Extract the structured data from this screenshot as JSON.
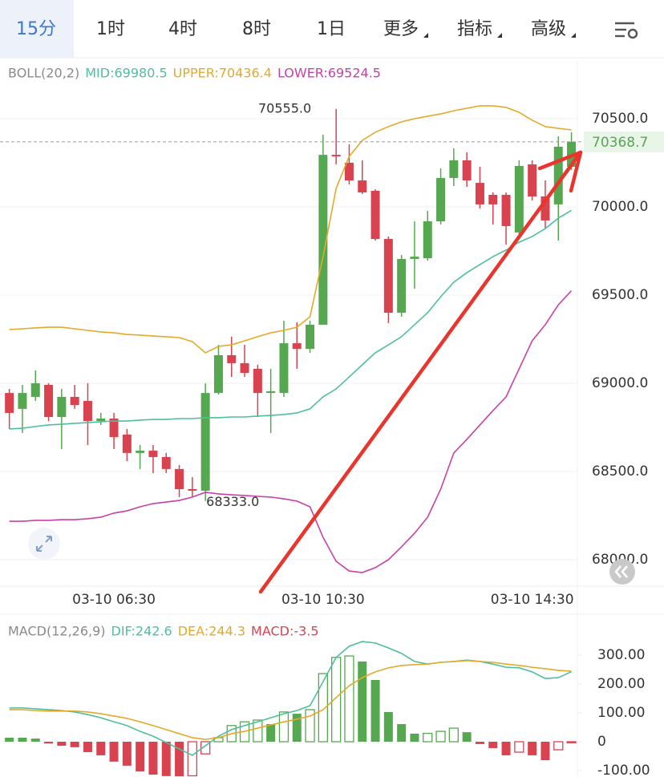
{
  "tabs": [
    "15分",
    "1时",
    "4时",
    "8时",
    "1日",
    "更多",
    "指标",
    "高级"
  ],
  "active_tab": 0,
  "chart_data": [
    {
      "type": "candlestick",
      "title": "BOLL(20,2)",
      "categories": [
        null,
        null,
        null,
        null,
        null,
        null,
        null,
        null,
        "03-10 06:30",
        null,
        null,
        null,
        null,
        null,
        null,
        null,
        null,
        null,
        null,
        null,
        null,
        null,
        null,
        null,
        "03-10 10:30",
        null,
        null,
        null,
        null,
        null,
        null,
        null,
        null,
        null,
        null,
        null,
        null,
        null,
        null,
        null,
        "03-10 14:30",
        null,
        null,
        null
      ],
      "open": [
        68945,
        68855,
        68923,
        68991,
        68809,
        68923,
        68900,
        68786,
        68800,
        68709,
        68605,
        68618,
        68582,
        68514,
        68400,
        68391,
        68945,
        69159,
        69114,
        69082,
        68945,
        68945,
        69227,
        69195,
        69332,
        70295,
        70250,
        70150,
        70091,
        69818,
        69400,
        69705,
        69709,
        69918,
        70164,
        70264,
        70136,
        70068,
        70068,
        69855,
        70241,
        70059,
        70014,
        70227
      ],
      "high": [
        68968,
        68991,
        69073,
        69000,
        68968,
        68991,
        69000,
        68832,
        68832,
        68741,
        68650,
        68650,
        68605,
        68536,
        68468,
        69000,
        69218,
        69264,
        69218,
        69105,
        69082,
        69355,
        69345,
        69355,
        70409,
        70555,
        70355,
        70264,
        70100,
        69832,
        69727,
        69918,
        69977,
        70218,
        70332,
        70309,
        70227,
        70082,
        70082,
        70264,
        70264,
        70150,
        70400,
        70423
      ],
      "low": [
        68741,
        68718,
        68900,
        68786,
        68627,
        68855,
        68650,
        68764,
        68627,
        68559,
        68514,
        68491,
        68491,
        68355,
        68355,
        68333,
        68936,
        69036,
        69036,
        68809,
        68718,
        68923,
        69082,
        69173,
        69332,
        70241,
        70127,
        70073,
        69809,
        69341,
        69377,
        69536,
        69695,
        69900,
        70118,
        70114,
        69991,
        69900,
        69786,
        69845,
        70036,
        69877,
        69809,
        70209
      ],
      "close": [
        68832,
        68945,
        69000,
        68809,
        68923,
        68877,
        68786,
        68800,
        68695,
        68605,
        68618,
        68582,
        68514,
        68400,
        68391,
        68945,
        69159,
        69114,
        69059,
        68945,
        68955,
        69227,
        69195,
        69332,
        70295,
        70286,
        70150,
        70082,
        69818,
        69400,
        69705,
        69718,
        69918,
        70164,
        70264,
        70150,
        70014,
        70014,
        69891,
        70232,
        70059,
        69923,
        70341,
        70368.7
      ],
      "up_color": "#55a84f",
      "down_color": "#d94350",
      "series": [
        {
          "name": "MID:69980.5",
          "color": "#4dbf9f",
          "values": [
            68741,
            68745,
            68755,
            68764,
            68768,
            68773,
            68777,
            68782,
            68786,
            68786,
            68791,
            68795,
            68795,
            68800,
            68800,
            68805,
            68805,
            68809,
            68809,
            68814,
            68818,
            68823,
            68832,
            68855,
            68923,
            68968,
            69036,
            69105,
            69173,
            69218,
            69264,
            69332,
            69400,
            69491,
            69573,
            69627,
            69673,
            69718,
            69755,
            69800,
            69832,
            69877,
            69936,
            69980.5
          ]
        },
        {
          "name": "UPPER:70436.4",
          "color": "#e3aa2a",
          "values": [
            69305,
            69309,
            69314,
            69318,
            69318,
            69309,
            69300,
            69291,
            69286,
            69277,
            69273,
            69268,
            69264,
            69259,
            69236,
            69173,
            69209,
            69218,
            69241,
            69264,
            69286,
            69300,
            69318,
            69377,
            69718,
            70105,
            70286,
            70377,
            70423,
            70455,
            70482,
            70500,
            70514,
            70527,
            70545,
            70559,
            70573,
            70573,
            70564,
            70536,
            70491,
            70455,
            70445,
            70436.4
          ]
        },
        {
          "name": "LOWER:69524.5",
          "color": "#c940a6",
          "values": [
            68218,
            68218,
            68223,
            68223,
            68227,
            68227,
            68232,
            68241,
            68264,
            68277,
            68300,
            68318,
            68327,
            68336,
            68355,
            68382,
            68373,
            68368,
            68364,
            68359,
            68355,
            68345,
            68332,
            68300,
            68127,
            67991,
            67936,
            67927,
            67955,
            68000,
            68073,
            68150,
            68241,
            68400,
            68605,
            68682,
            68764,
            68845,
            68923,
            69082,
            69241,
            69332,
            69445,
            69524.5
          ]
        }
      ],
      "ylim": [
        67854.5,
        70831.8
      ],
      "yticks": [
        {
          "value": 70500,
          "label": "70500.0"
        },
        {
          "value": 70000,
          "label": "70000.0"
        },
        {
          "value": 69500,
          "label": "69500.0"
        },
        {
          "value": 69000,
          "label": "69000.0"
        },
        {
          "value": 68500,
          "label": "68500.0"
        },
        {
          "value": 68000,
          "label": "68000.0"
        }
      ],
      "grid": true,
      "annotations": [
        {
          "value": 70555,
          "label": "70555.0"
        },
        {
          "value": 68333,
          "label": "68333.0"
        }
      ]
    },
    {
      "type": "macd",
      "title": "MACD(12,26,9)",
      "series": [
        {
          "name": "DIF:242.6",
          "color": "#4dbf9f",
          "values": [
            117,
            117,
            114,
            111,
            108,
            103,
            94,
            83,
            69,
            56,
            36,
            19,
            -3,
            -25,
            -47,
            -14,
            19,
            42,
            56,
            69,
            83,
            97,
            108,
            125,
            208,
            292,
            331,
            347,
            342,
            325,
            306,
            278,
            269,
            275,
            278,
            283,
            278,
            269,
            258,
            256,
            242,
            219,
            222,
            242.6
          ]
        },
        {
          "name": "DEA:244.3",
          "color": "#e3aa2a",
          "values": [
            111,
            111,
            108,
            106,
            106,
            106,
            103,
            97,
            89,
            81,
            69,
            56,
            42,
            28,
            14,
            8,
            14,
            28,
            36,
            47,
            58,
            69,
            78,
            89,
            111,
            153,
            194,
            222,
            242,
            256,
            264,
            267,
            269,
            275,
            278,
            281,
            278,
            275,
            269,
            264,
            258,
            253,
            247,
            244.3
          ]
        },
        {
          "name": "MACD:-3.5",
          "type": "bar",
          "up_color": "#55a84f",
          "down_color": "#d94350",
          "values": [
            14,
            14,
            11,
            -6,
            -14,
            -19,
            -36,
            -47,
            -69,
            -83,
            -103,
            -114,
            -119,
            -120,
            -118,
            -42,
            14,
            56,
            69,
            75,
            61,
            103,
            97,
            111,
            236,
            292,
            297,
            278,
            214,
            103,
            61,
            28,
            29,
            36,
            47,
            33,
            -8,
            -22,
            -47,
            -36,
            -47,
            -64,
            -28,
            -3.5
          ]
        }
      ],
      "ylim": [
        -122.2,
        375
      ],
      "yticks": [
        {
          "value": 300,
          "label": "300.00"
        },
        {
          "value": 200,
          "label": "200.00"
        },
        {
          "value": 100,
          "label": "100.00"
        },
        0,
        {
          "value": -100,
          "label": "-100.00"
        }
      ]
    }
  ]
}
